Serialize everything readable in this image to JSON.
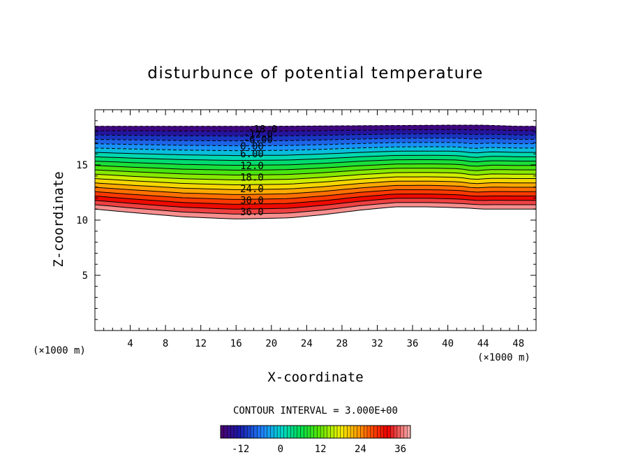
{
  "chart_data": {
    "type": "contour",
    "title": "disturbunce of potential temperature",
    "xlabel": "X-coordinate",
    "ylabel": "Z-coordinate",
    "x_unit": "(×1000 m)",
    "z_unit": "(×1000 m)",
    "xlim": [
      0,
      50
    ],
    "ylim": [
      0,
      20
    ],
    "x_ticks": [
      4,
      8,
      12,
      16,
      20,
      24,
      28,
      32,
      36,
      40,
      44,
      48
    ],
    "x_tick_labels": [
      "4",
      "8",
      "12",
      "16",
      "20",
      "24",
      "28",
      "32",
      "36",
      "40",
      "44",
      "48"
    ],
    "y_ticks": [
      5,
      10,
      15
    ],
    "y_tick_labels": [
      "5",
      "10",
      "15"
    ],
    "contour_interval_text": "CONTOUR INTERVAL = 3.000E+00",
    "contour_min": -18,
    "contour_max": 39,
    "contour_step": 3,
    "field_bottom_profile": [
      [
        0,
        11.0
      ],
      [
        4,
        10.7
      ],
      [
        10,
        10.3
      ],
      [
        16,
        10.1
      ],
      [
        22,
        10.2
      ],
      [
        26,
        10.5
      ],
      [
        30,
        10.9
      ],
      [
        34,
        11.2
      ],
      [
        38,
        11.2
      ],
      [
        42,
        11.1
      ],
      [
        44,
        11.0
      ],
      [
        48,
        11.0
      ],
      [
        50,
        11.0
      ]
    ],
    "field_top_profile": [
      [
        0,
        18.5
      ],
      [
        20,
        18.5
      ],
      [
        30,
        18.55
      ],
      [
        40,
        18.6
      ],
      [
        44,
        18.6
      ],
      [
        48,
        18.5
      ],
      [
        50,
        18.5
      ]
    ],
    "contour_labels": [
      {
        "text": "-18.0",
        "x": 19.0,
        "z": 18.25
      },
      {
        "text": "-12.0",
        "x": 18.5,
        "z": 17.8
      },
      {
        "text": "-6.00",
        "x": 18.5,
        "z": 17.3
      },
      {
        "text": "0.00",
        "x": 17.8,
        "z": 16.7
      },
      {
        "text": "6.00",
        "x": 17.8,
        "z": 16.0
      },
      {
        "text": "12.0",
        "x": 17.8,
        "z": 14.95
      },
      {
        "text": "18.0",
        "x": 17.8,
        "z": 13.9
      },
      {
        "text": "24.0",
        "x": 17.8,
        "z": 12.85
      },
      {
        "text": "30.0",
        "x": 17.8,
        "z": 11.8
      },
      {
        "text": "36.0",
        "x": 17.8,
        "z": 10.75
      }
    ],
    "colorbar": {
      "min": -18,
      "max": 39,
      "ticks": [
        -12,
        0,
        12,
        24,
        36
      ],
      "tick_labels": [
        "-12",
        "0",
        "12",
        "24",
        "36"
      ]
    }
  }
}
